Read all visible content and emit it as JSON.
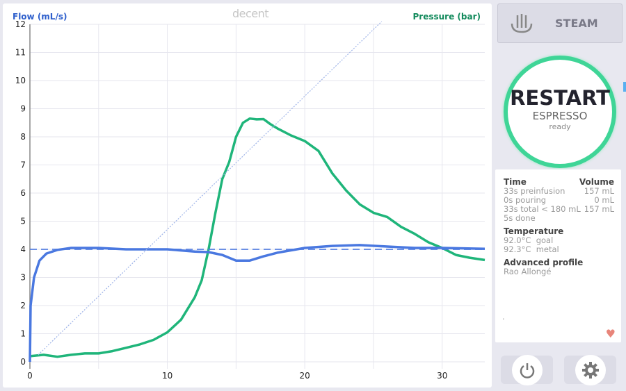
{
  "header": {
    "flow_label": "Flow (mL/s)",
    "pressure_label": "Pressure (bar)",
    "logo": "decent"
  },
  "steam": {
    "label": "STEAM",
    "icon": "steam-icon"
  },
  "main_button": {
    "title": "RESTART",
    "subtitle": "ESPRESSO",
    "status": "ready"
  },
  "info": {
    "time_header": "Time",
    "volume_header": "Volume",
    "rows": [
      {
        "t": "33s preinfusion",
        "v": "157 mL"
      },
      {
        "t": "0s pouring",
        "v": "0 mL"
      },
      {
        "t": "33s total < 180 mL",
        "v": "157 mL"
      },
      {
        "t": "5s done",
        "v": ""
      }
    ],
    "temperature_header": "Temperature",
    "temps": [
      {
        "value": "92.0°C",
        "label": "goal"
      },
      {
        "value": "92.3°C",
        "label": "metal"
      }
    ],
    "profile_header": "Advanced profile",
    "profile_name": "Rao Allongé",
    "dot": "."
  },
  "footer": {
    "power_icon": "power-icon",
    "settings_icon": "gear-icon"
  },
  "colors": {
    "flow": "#4a78e0",
    "pressure": "#1fb57a",
    "goal": "#9fb4e8"
  },
  "chart_data": {
    "type": "line",
    "xlim": [
      0,
      33.1
    ],
    "ylim": [
      0,
      12
    ],
    "x_ticks": [
      0,
      10,
      20,
      30
    ],
    "y_ticks": [
      0,
      1,
      2,
      3,
      4,
      5,
      6,
      7,
      8,
      9,
      10,
      11,
      12
    ],
    "series": [
      {
        "name": "pressure",
        "color": "#1fb57a",
        "points": [
          [
            0,
            0.2
          ],
          [
            1,
            0.25
          ],
          [
            2,
            0.18
          ],
          [
            3,
            0.25
          ],
          [
            4,
            0.3
          ],
          [
            5,
            0.3
          ],
          [
            6,
            0.38
          ],
          [
            7,
            0.5
          ],
          [
            8,
            0.62
          ],
          [
            9,
            0.78
          ],
          [
            10,
            1.05
          ],
          [
            11,
            1.5
          ],
          [
            12,
            2.3
          ],
          [
            12.5,
            2.9
          ],
          [
            13,
            4.0
          ],
          [
            13.5,
            5.3
          ],
          [
            14,
            6.5
          ],
          [
            14.5,
            7.1
          ],
          [
            15,
            8.0
          ],
          [
            15.5,
            8.5
          ],
          [
            16,
            8.65
          ],
          [
            16.5,
            8.62
          ],
          [
            17,
            8.63
          ],
          [
            17.5,
            8.45
          ],
          [
            18,
            8.3
          ],
          [
            19,
            8.05
          ],
          [
            20,
            7.85
          ],
          [
            21,
            7.5
          ],
          [
            22,
            6.7
          ],
          [
            23,
            6.1
          ],
          [
            24,
            5.6
          ],
          [
            25,
            5.3
          ],
          [
            26,
            5.15
          ],
          [
            27,
            4.8
          ],
          [
            28,
            4.55
          ],
          [
            29,
            4.25
          ],
          [
            30,
            4.05
          ],
          [
            31,
            3.8
          ],
          [
            32,
            3.7
          ],
          [
            33.1,
            3.62
          ]
        ]
      },
      {
        "name": "flow",
        "color": "#4a78e0",
        "points": [
          [
            0,
            0
          ],
          [
            0.05,
            2.0
          ],
          [
            0.3,
            3.0
          ],
          [
            0.7,
            3.6
          ],
          [
            1.2,
            3.85
          ],
          [
            2,
            3.98
          ],
          [
            3,
            4.05
          ],
          [
            5,
            4.05
          ],
          [
            7,
            4.0
          ],
          [
            10,
            4.0
          ],
          [
            12,
            3.92
          ],
          [
            13,
            3.9
          ],
          [
            14,
            3.8
          ],
          [
            15,
            3.6
          ],
          [
            16,
            3.6
          ],
          [
            17,
            3.75
          ],
          [
            18,
            3.88
          ],
          [
            20,
            4.05
          ],
          [
            22,
            4.12
          ],
          [
            24,
            4.15
          ],
          [
            26,
            4.1
          ],
          [
            28,
            4.05
          ],
          [
            30,
            4.05
          ],
          [
            33.1,
            4.02
          ]
        ]
      },
      {
        "name": "flow-goal",
        "color": "#4a78e0",
        "dashed": true,
        "points": [
          [
            0,
            4
          ],
          [
            33.1,
            4
          ]
        ]
      },
      {
        "name": "weight",
        "color": "#9fb4e8",
        "dotted": true,
        "points": [
          [
            0.6,
            0.25
          ],
          [
            25.6,
            12.1
          ]
        ]
      }
    ]
  }
}
